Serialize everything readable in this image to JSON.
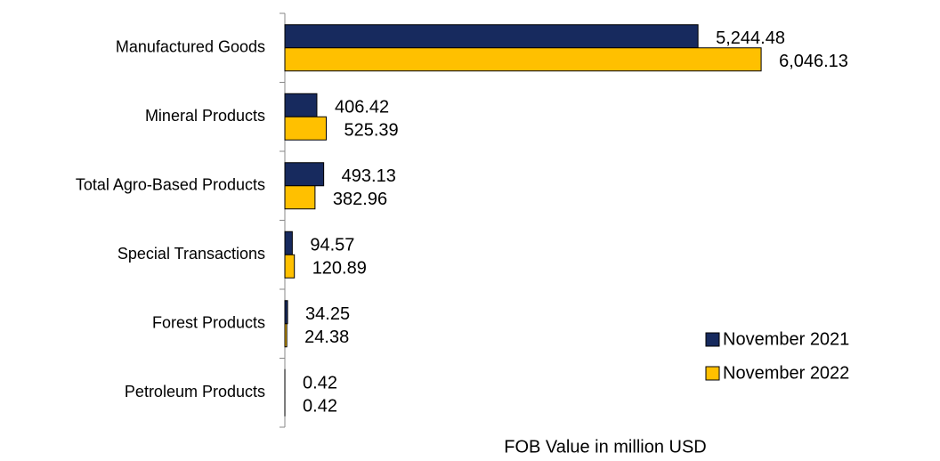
{
  "chart_data": {
    "type": "hbar",
    "xlabel": "FOB Value in million USD",
    "categories": [
      "Manufactured Goods",
      "Mineral Products",
      "Total Agro-Based Products",
      "Special Transactions",
      "Forest Products",
      "Petroleum Products"
    ],
    "series": [
      {
        "name": "November 2021",
        "color": "#172a5e",
        "values": [
          5244.48,
          406.42,
          493.13,
          94.57,
          34.25,
          0.42
        ],
        "value_labels": [
          "5,244.48",
          "406.42",
          "493.13",
          "94.57",
          "34.25",
          "0.42"
        ]
      },
      {
        "name": "November 2022",
        "color": "#ffc000",
        "values": [
          6046.13,
          525.39,
          382.96,
          120.89,
          24.38,
          0.42
        ],
        "value_labels": [
          "6,046.13",
          "525.39",
          "382.96",
          "120.89",
          "24.38",
          "0.42"
        ]
      }
    ],
    "xlim": [
      0,
      8000
    ],
    "grid": false,
    "legend": "lower right"
  }
}
